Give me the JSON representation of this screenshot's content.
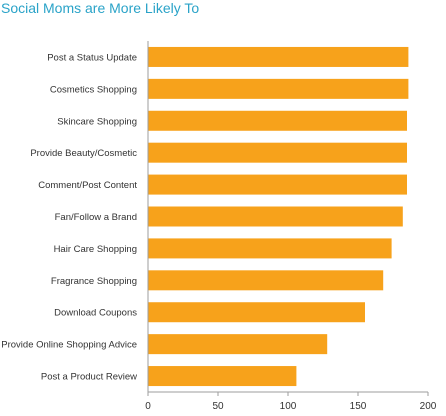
{
  "chart_data": {
    "type": "bar",
    "orientation": "horizontal",
    "title": "Social Moms are More Likely To",
    "categories": [
      "Post a Status Update",
      "Cosmetics Shopping",
      "Skincare Shopping",
      "Provide Beauty/Cosmetic",
      "Comment/Post Content",
      "Fan/Follow a Brand",
      "Hair Care Shopping",
      "Fragrance Shopping",
      "Download Coupons",
      "Provide Online Shopping Advice",
      "Post a Product Review"
    ],
    "values": [
      186,
      186,
      185,
      185,
      185,
      182,
      174,
      168,
      155,
      128,
      106
    ],
    "xlim": [
      0,
      200
    ],
    "xticks": [
      "0",
      "50",
      "100",
      "150",
      "200"
    ],
    "xlabel": "",
    "ylabel": "",
    "grid": false,
    "colors": {
      "bar": "#f7a21b",
      "title": "#2aa3c8",
      "axis": "#9e9e9e"
    }
  }
}
